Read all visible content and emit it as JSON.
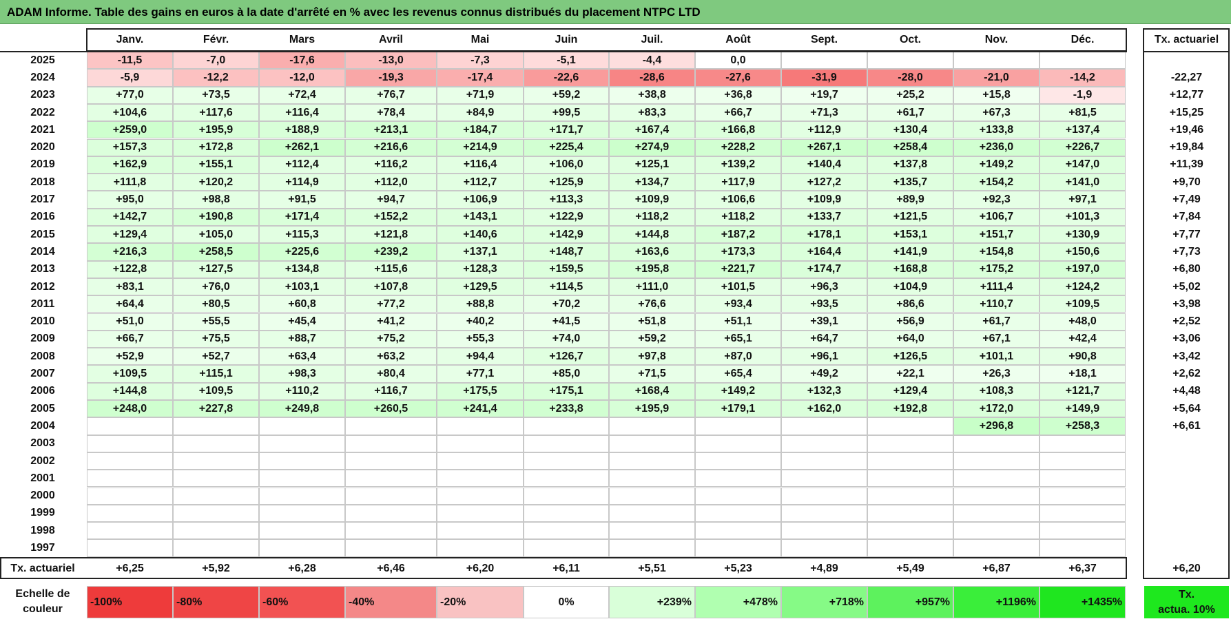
{
  "title": "ADAM Informe. Table des gains en euros à la date d'arrêté en % avec les revenus connus distribués du placement NTPC LTD",
  "months": [
    "Janv.",
    "Févr.",
    "Mars",
    "Avril",
    "Mai",
    "Juin",
    "Juil.",
    "Août",
    "Sept.",
    "Oct.",
    "Nov.",
    "Déc."
  ],
  "tx_header": "Tx. actuariel",
  "rows": [
    {
      "year": "2025",
      "values": [
        "-11,5",
        "-7,0",
        "-17,6",
        "-13,0",
        "-7,3",
        "-5,1",
        "-4,4",
        "0,0",
        "",
        "",
        "",
        ""
      ],
      "tx": ""
    },
    {
      "year": "2024",
      "values": [
        "-5,9",
        "-12,2",
        "-12,0",
        "-19,3",
        "-17,4",
        "-22,6",
        "-28,6",
        "-27,6",
        "-31,9",
        "-28,0",
        "-21,0",
        "-14,2"
      ],
      "tx": "-22,27"
    },
    {
      "year": "2023",
      "values": [
        "+77,0",
        "+73,5",
        "+72,4",
        "+76,7",
        "+71,9",
        "+59,2",
        "+38,8",
        "+36,8",
        "+19,7",
        "+25,2",
        "+15,8",
        "-1,9"
      ],
      "tx": "+12,77"
    },
    {
      "year": "2022",
      "values": [
        "+104,6",
        "+117,6",
        "+116,4",
        "+78,4",
        "+84,9",
        "+99,5",
        "+83,3",
        "+66,7",
        "+71,3",
        "+61,7",
        "+67,3",
        "+81,5"
      ],
      "tx": "+15,25"
    },
    {
      "year": "2021",
      "values": [
        "+259,0",
        "+195,9",
        "+188,9",
        "+213,1",
        "+184,7",
        "+171,7",
        "+167,4",
        "+166,8",
        "+112,9",
        "+130,4",
        "+133,8",
        "+137,4"
      ],
      "tx": "+19,46"
    },
    {
      "year": "2020",
      "values": [
        "+157,3",
        "+172,8",
        "+262,1",
        "+216,6",
        "+214,9",
        "+225,4",
        "+274,9",
        "+228,2",
        "+267,1",
        "+258,4",
        "+236,0",
        "+226,7"
      ],
      "tx": "+19,84"
    },
    {
      "year": "2019",
      "values": [
        "+162,9",
        "+155,1",
        "+112,4",
        "+116,2",
        "+116,4",
        "+106,0",
        "+125,1",
        "+139,2",
        "+140,4",
        "+137,8",
        "+149,2",
        "+147,0"
      ],
      "tx": "+11,39"
    },
    {
      "year": "2018",
      "values": [
        "+111,8",
        "+120,2",
        "+114,9",
        "+112,0",
        "+112,7",
        "+125,9",
        "+134,7",
        "+117,9",
        "+127,2",
        "+135,7",
        "+154,2",
        "+141,0"
      ],
      "tx": "+9,70"
    },
    {
      "year": "2017",
      "values": [
        "+95,0",
        "+98,8",
        "+91,5",
        "+94,7",
        "+106,9",
        "+113,3",
        "+109,9",
        "+106,6",
        "+109,9",
        "+89,9",
        "+92,3",
        "+97,1"
      ],
      "tx": "+7,49"
    },
    {
      "year": "2016",
      "values": [
        "+142,7",
        "+190,8",
        "+171,4",
        "+152,2",
        "+143,1",
        "+122,9",
        "+118,2",
        "+118,2",
        "+133,7",
        "+121,5",
        "+106,7",
        "+101,3"
      ],
      "tx": "+7,84"
    },
    {
      "year": "2015",
      "values": [
        "+129,4",
        "+105,0",
        "+115,3",
        "+121,8",
        "+140,6",
        "+142,9",
        "+144,8",
        "+187,2",
        "+178,1",
        "+153,1",
        "+151,7",
        "+130,9"
      ],
      "tx": "+7,77"
    },
    {
      "year": "2014",
      "values": [
        "+216,3",
        "+258,5",
        "+225,6",
        "+239,2",
        "+137,1",
        "+148,7",
        "+163,6",
        "+173,3",
        "+164,4",
        "+141,9",
        "+154,8",
        "+150,6"
      ],
      "tx": "+7,73"
    },
    {
      "year": "2013",
      "values": [
        "+122,8",
        "+127,5",
        "+134,8",
        "+115,6",
        "+128,3",
        "+159,5",
        "+195,8",
        "+221,7",
        "+174,7",
        "+168,8",
        "+175,2",
        "+197,0"
      ],
      "tx": "+6,80"
    },
    {
      "year": "2012",
      "values": [
        "+83,1",
        "+76,0",
        "+103,1",
        "+107,8",
        "+129,5",
        "+114,5",
        "+111,0",
        "+101,5",
        "+96,3",
        "+104,9",
        "+111,4",
        "+124,2"
      ],
      "tx": "+5,02"
    },
    {
      "year": "2011",
      "values": [
        "+64,4",
        "+80,5",
        "+60,8",
        "+77,2",
        "+88,8",
        "+70,2",
        "+76,6",
        "+93,4",
        "+93,5",
        "+86,6",
        "+110,7",
        "+109,5"
      ],
      "tx": "+3,98"
    },
    {
      "year": "2010",
      "values": [
        "+51,0",
        "+55,5",
        "+45,4",
        "+41,2",
        "+40,2",
        "+41,5",
        "+51,8",
        "+51,1",
        "+39,1",
        "+56,9",
        "+61,7",
        "+48,0"
      ],
      "tx": "+2,52"
    },
    {
      "year": "2009",
      "values": [
        "+66,7",
        "+75,5",
        "+88,7",
        "+75,2",
        "+55,3",
        "+74,0",
        "+59,2",
        "+65,1",
        "+64,7",
        "+64,0",
        "+67,1",
        "+42,4"
      ],
      "tx": "+3,06"
    },
    {
      "year": "2008",
      "values": [
        "+52,9",
        "+52,7",
        "+63,4",
        "+63,2",
        "+94,4",
        "+126,7",
        "+97,8",
        "+87,0",
        "+96,1",
        "+126,5",
        "+101,1",
        "+90,8"
      ],
      "tx": "+3,42"
    },
    {
      "year": "2007",
      "values": [
        "+109,5",
        "+115,1",
        "+98,3",
        "+80,4",
        "+77,1",
        "+85,0",
        "+71,5",
        "+65,4",
        "+49,2",
        "+22,1",
        "+26,3",
        "+18,1"
      ],
      "tx": "+2,62"
    },
    {
      "year": "2006",
      "values": [
        "+144,8",
        "+109,5",
        "+110,2",
        "+116,7",
        "+175,5",
        "+175,1",
        "+168,4",
        "+149,2",
        "+132,3",
        "+129,4",
        "+108,3",
        "+121,7"
      ],
      "tx": "+4,48"
    },
    {
      "year": "2005",
      "values": [
        "+248,0",
        "+227,8",
        "+249,8",
        "+260,5",
        "+241,4",
        "+233,8",
        "+195,9",
        "+179,1",
        "+162,0",
        "+192,8",
        "+172,0",
        "+149,9"
      ],
      "tx": "+5,64"
    },
    {
      "year": "2004",
      "values": [
        "",
        "",
        "",
        "",
        "",
        "",
        "",
        "",
        "",
        "",
        "+296,8",
        "+258,3"
      ],
      "tx": "+6,61"
    },
    {
      "year": "2003",
      "values": [
        "",
        "",
        "",
        "",
        "",
        "",
        "",
        "",
        "",
        "",
        "",
        ""
      ],
      "tx": ""
    },
    {
      "year": "2002",
      "values": [
        "",
        "",
        "",
        "",
        "",
        "",
        "",
        "",
        "",
        "",
        "",
        ""
      ],
      "tx": ""
    },
    {
      "year": "2001",
      "values": [
        "",
        "",
        "",
        "",
        "",
        "",
        "",
        "",
        "",
        "",
        "",
        ""
      ],
      "tx": ""
    },
    {
      "year": "2000",
      "values": [
        "",
        "",
        "",
        "",
        "",
        "",
        "",
        "",
        "",
        "",
        "",
        ""
      ],
      "tx": ""
    },
    {
      "year": "1999",
      "values": [
        "",
        "",
        "",
        "",
        "",
        "",
        "",
        "",
        "",
        "",
        "",
        ""
      ],
      "tx": ""
    },
    {
      "year": "1998",
      "values": [
        "",
        "",
        "",
        "",
        "",
        "",
        "",
        "",
        "",
        "",
        "",
        ""
      ],
      "tx": ""
    },
    {
      "year": "1997",
      "values": [
        "",
        "",
        "",
        "",
        "",
        "",
        "",
        "",
        "",
        "",
        "",
        ""
      ],
      "tx": ""
    }
  ],
  "footer": {
    "label": "Tx. actuariel",
    "values": [
      "+6,25",
      "+5,92",
      "+6,28",
      "+6,46",
      "+6,20",
      "+6,11",
      "+5,51",
      "+5,23",
      "+4,89",
      "+5,49",
      "+6,87",
      "+6,37"
    ],
    "tx": "+6,20"
  },
  "legend": {
    "label_line1": "Echelle de",
    "label_line2": "couleur",
    "items": [
      {
        "text": "-100%",
        "color": "#ee3b3b"
      },
      {
        "text": "-80%",
        "color": "#ef4545"
      },
      {
        "text": "-60%",
        "color": "#f25252"
      },
      {
        "text": "-40%",
        "color": "#f48888"
      },
      {
        "text": "-20%",
        "color": "#f9c2c2"
      },
      {
        "text": "0%",
        "color": "#ffffff"
      },
      {
        "text": "+239%",
        "color": "#d9ffd9"
      },
      {
        "text": "+478%",
        "color": "#b0ffb0"
      },
      {
        "text": "+718%",
        "color": "#86fa86"
      },
      {
        "text": "+957%",
        "color": "#5df25d"
      },
      {
        "text": "+1196%",
        "color": "#3aee3a"
      },
      {
        "text": "+1435%",
        "color": "#1fe61f"
      }
    ],
    "tx_line1": "Tx.",
    "tx_line2": "actua. 10%",
    "tx_color": "#1ee81e"
  }
}
